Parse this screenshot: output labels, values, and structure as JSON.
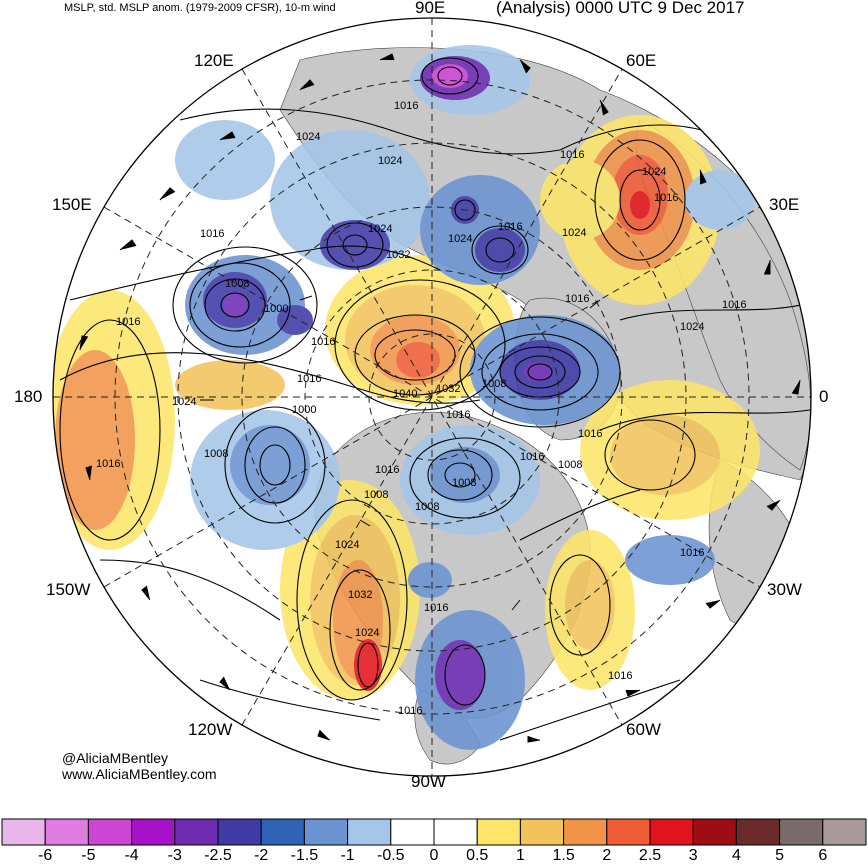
{
  "header": {
    "title_left": "MSLP, std. MSLP anom. (1979-2009 CFSR), 10-m wind",
    "title_right": "(Analysis) 0000 UTC 9 Dec 2017"
  },
  "longitude_labels": {
    "lon_90e": "90E",
    "lon_120e": "120E",
    "lon_60e": "60E",
    "lon_150e": "150E",
    "lon_30e": "30E",
    "lon_180": "180",
    "lon_0": "0",
    "lon_150w": "150W",
    "lon_30w": "30W",
    "lon_120w": "120W",
    "lon_60w": "60W",
    "lon_90w": "90W"
  },
  "isobar_labels": [
    "1016",
    "1024",
    "1024",
    "1016",
    "1024",
    "1024",
    "1016",
    "1024",
    "1032",
    "1024",
    "1016",
    "1016",
    "1008",
    "1016",
    "1000",
    "1016",
    "1024",
    "1016",
    "1016",
    "1040",
    "1032",
    "1008",
    "1000",
    "1016",
    "1024",
    "1008",
    "1016",
    "1016",
    "1016",
    "1008",
    "1008",
    "1008",
    "1008",
    "1016",
    "1024",
    "1032",
    "1016",
    "1016",
    "1024",
    "1016",
    "1016",
    "1016"
  ],
  "credits": {
    "handle": "@AliciaMBentley",
    "website": "www.AliciaMBentley.com"
  },
  "colorbar": {
    "labels": [
      "-6",
      "-5",
      "-4",
      "-3",
      "-2.5",
      "-2",
      "-1.5",
      "-1",
      "-0.5",
      "0",
      "0.5",
      "1",
      "1.5",
      "2",
      "2.5",
      "3",
      "4",
      "5",
      "6"
    ],
    "colors": [
      "#e8b6ea",
      "#e07be2",
      "#cc46d4",
      "#a512c8",
      "#6e2cb3",
      "#3f3aa6",
      "#2f63b8",
      "#6b93d1",
      "#a4c6e8",
      "#ffffff",
      "#ffffff",
      "#fde56a",
      "#f3c35b",
      "#f19448",
      "#ef5c35",
      "#e2141b",
      "#9e0d14",
      "#6b2b2b",
      "#7a6a6a",
      "#a89a9a"
    ]
  },
  "colors": {
    "land": "#c8c8c8",
    "ocean": "#ffffff",
    "isobar": "#000000"
  }
}
